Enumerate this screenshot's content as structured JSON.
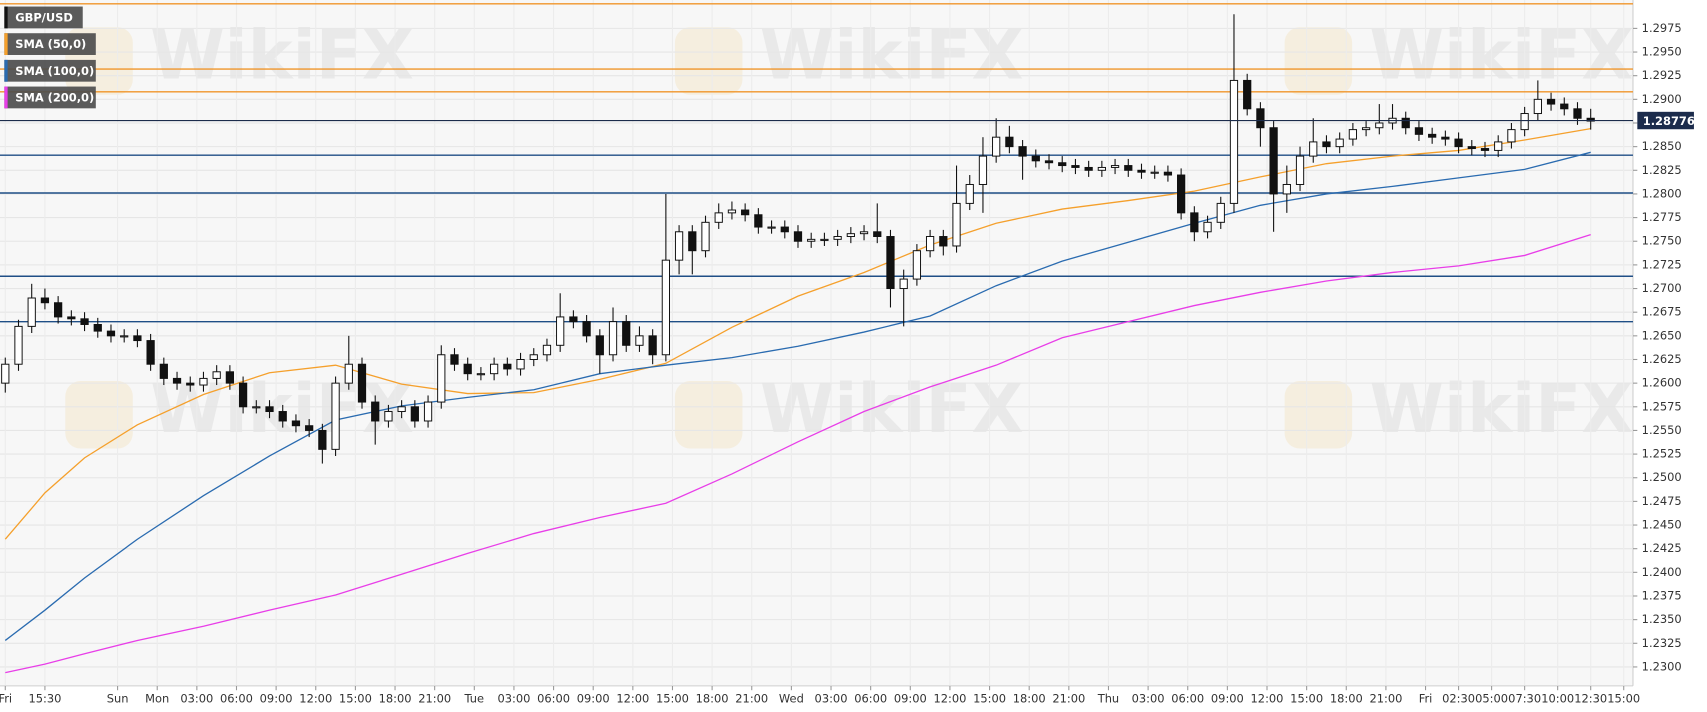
{
  "chart_data": {
    "type": "candlestick",
    "symbol": "GBP/USD",
    "symbol_color": "#111111",
    "watermark": "WikiFX",
    "up_color": "#ffffff",
    "down_color": "#111111",
    "grid": true,
    "xlim": [
      -0.4,
      123.2
    ],
    "ylim": [
      1.228,
      1.3005
    ],
    "xticks": [
      {
        "value": 0,
        "label": "Fri"
      },
      {
        "value": 3,
        "label": "15:30"
      },
      {
        "value": 8.5,
        "label": "Sun"
      },
      {
        "value": 11.5,
        "label": "Mon"
      },
      {
        "value": 14.5,
        "label": "03:00"
      },
      {
        "value": 17.5,
        "label": "06:00"
      },
      {
        "value": 20.5,
        "label": "09:00"
      },
      {
        "value": 23.5,
        "label": "12:00"
      },
      {
        "value": 26.5,
        "label": "15:00"
      },
      {
        "value": 29.5,
        "label": "18:00"
      },
      {
        "value": 32.5,
        "label": "21:00"
      },
      {
        "value": 35.5,
        "label": "Tue"
      },
      {
        "value": 38.5,
        "label": "03:00"
      },
      {
        "value": 41.5,
        "label": "06:00"
      },
      {
        "value": 44.5,
        "label": "09:00"
      },
      {
        "value": 47.5,
        "label": "12:00"
      },
      {
        "value": 50.5,
        "label": "15:00"
      },
      {
        "value": 53.5,
        "label": "18:00"
      },
      {
        "value": 56.5,
        "label": "21:00"
      },
      {
        "value": 59.5,
        "label": "Wed"
      },
      {
        "value": 62.5,
        "label": "03:00"
      },
      {
        "value": 65.5,
        "label": "06:00"
      },
      {
        "value": 68.5,
        "label": "09:00"
      },
      {
        "value": 71.5,
        "label": "12:00"
      },
      {
        "value": 74.5,
        "label": "15:00"
      },
      {
        "value": 77.5,
        "label": "18:00"
      },
      {
        "value": 80.5,
        "label": "21:00"
      },
      {
        "value": 83.5,
        "label": "Thu"
      },
      {
        "value": 86.5,
        "label": "03:00"
      },
      {
        "value": 89.5,
        "label": "06:00"
      },
      {
        "value": 92.5,
        "label": "09:00"
      },
      {
        "value": 95.5,
        "label": "12:00"
      },
      {
        "value": 98.5,
        "label": "15:00"
      },
      {
        "value": 101.5,
        "label": "18:00"
      },
      {
        "value": 104.5,
        "label": "21:00"
      },
      {
        "value": 107.5,
        "label": "Fri"
      },
      {
        "value": 110,
        "label": "02:30"
      },
      {
        "value": 112.5,
        "label": "05:00"
      },
      {
        "value": 115,
        "label": "07:30"
      },
      {
        "value": 117.5,
        "label": "10:00"
      },
      {
        "value": 120,
        "label": "12:30"
      },
      {
        "value": 122.5,
        "label": "15:00"
      }
    ],
    "yticks": [
      {
        "value": 1.23,
        "label": "1.2300"
      },
      {
        "value": 1.2325,
        "label": "1.2325"
      },
      {
        "value": 1.235,
        "label": "1.2350"
      },
      {
        "value": 1.2375,
        "label": "1.2375"
      },
      {
        "value": 1.24,
        "label": "1.2400"
      },
      {
        "value": 1.2425,
        "label": "1.2425"
      },
      {
        "value": 1.245,
        "label": "1.2450"
      },
      {
        "value": 1.2475,
        "label": "1.2475"
      },
      {
        "value": 1.25,
        "label": "1.2500"
      },
      {
        "value": 1.2525,
        "label": "1.2525"
      },
      {
        "value": 1.255,
        "label": "1.2550"
      },
      {
        "value": 1.2575,
        "label": "1.2575"
      },
      {
        "value": 1.26,
        "label": "1.2600"
      },
      {
        "value": 1.2625,
        "label": "1.2625"
      },
      {
        "value": 1.265,
        "label": "1.2650"
      },
      {
        "value": 1.2675,
        "label": "1.2675"
      },
      {
        "value": 1.27,
        "label": "1.2700"
      },
      {
        "value": 1.2725,
        "label": "1.2725"
      },
      {
        "value": 1.275,
        "label": "1.2750"
      },
      {
        "value": 1.2775,
        "label": "1.2775"
      },
      {
        "value": 1.28,
        "label": "1.2800"
      },
      {
        "value": 1.2825,
        "label": "1.2825"
      },
      {
        "value": 1.285,
        "label": "1.2850"
      },
      {
        "value": 1.2875,
        "label": "1.2875"
      },
      {
        "value": 1.29,
        "label": "1.2900"
      },
      {
        "value": 1.2925,
        "label": "1.2925"
      },
      {
        "value": 1.295,
        "label": "1.2950"
      },
      {
        "value": 1.2975,
        "label": "1.2975"
      }
    ],
    "last_price": 1.28776,
    "last_price_color": "#1c2c4c",
    "levels": [
      {
        "value": 1.3001,
        "color": "#f0952a"
      },
      {
        "value": 1.2932,
        "color": "#f0952a"
      },
      {
        "value": 1.2908,
        "color": "#f0952a"
      },
      {
        "value": 1.2841,
        "color": "#1f4e86"
      },
      {
        "value": 1.2801,
        "color": "#1f4e86"
      },
      {
        "value": 1.2713,
        "color": "#1f4e86"
      },
      {
        "value": 1.2665,
        "color": "#1f4e86"
      }
    ],
    "x": [
      0,
      1,
      2,
      3,
      4,
      5,
      6,
      7,
      8,
      9,
      10,
      11,
      12,
      13,
      14,
      15,
      16,
      17,
      18,
      19,
      20,
      21,
      22,
      23,
      24,
      25,
      26,
      27,
      28,
      29,
      30,
      31,
      32,
      33,
      34,
      35,
      36,
      37,
      38,
      39,
      40,
      41,
      42,
      43,
      44,
      45,
      46,
      47,
      48,
      49,
      50,
      51,
      52,
      53,
      54,
      55,
      56,
      57,
      58,
      59,
      60,
      61,
      62,
      63,
      64,
      65,
      66,
      67,
      68,
      69,
      70,
      71,
      72,
      73,
      74,
      75,
      76,
      77,
      78,
      79,
      80,
      81,
      82,
      83,
      84,
      85,
      86,
      87,
      88,
      89,
      90,
      91,
      92,
      93,
      94,
      95,
      96,
      97,
      98,
      99,
      100,
      101,
      102,
      103,
      104,
      105,
      106,
      107,
      108,
      109,
      110,
      111,
      112,
      113,
      114,
      115,
      116,
      117,
      118,
      119,
      120
    ],
    "open": [
      1.26,
      1.262,
      1.266,
      1.269,
      1.2685,
      1.267,
      1.2668,
      1.2662,
      1.2655,
      1.265,
      1.265,
      1.2645,
      1.262,
      1.2605,
      1.26,
      1.2598,
      1.2605,
      1.2612,
      1.26,
      1.2575,
      1.2575,
      1.257,
      1.256,
      1.2555,
      1.255,
      1.253,
      1.26,
      1.262,
      1.258,
      1.256,
      1.257,
      1.2575,
      1.256,
      1.258,
      1.263,
      1.262,
      1.261,
      1.261,
      1.262,
      1.2615,
      1.2625,
      1.263,
      1.264,
      1.267,
      1.2665,
      1.265,
      1.263,
      1.2665,
      1.264,
      1.265,
      1.263,
      1.273,
      1.276,
      1.274,
      1.277,
      1.278,
      1.2783,
      1.2778,
      1.2765,
      1.2765,
      1.276,
      1.275,
      1.2752,
      1.2752,
      1.2755,
      1.2758,
      1.276,
      1.2755,
      1.27,
      1.271,
      1.274,
      1.2755,
      1.2745,
      1.279,
      1.281,
      1.284,
      1.286,
      1.285,
      1.284,
      1.2835,
      1.2833,
      1.283,
      1.2828,
      1.2825,
      1.2828,
      1.283,
      1.2825,
      1.2823,
      1.2823,
      1.282,
      1.278,
      1.276,
      1.277,
      1.279,
      1.292,
      1.289,
      1.287,
      1.28,
      1.281,
      1.284,
      1.2855,
      1.285,
      1.2858,
      1.2868,
      1.287,
      1.2875,
      1.288,
      1.287,
      1.2863,
      1.286,
      1.2858,
      1.285,
      1.2848,
      1.2846,
      1.2855,
      1.2868,
      1.2885,
      1.29,
      1.2895,
      1.289,
      1.288
    ],
    "high": [
      1.2627,
      1.2667,
      1.2705,
      1.27,
      1.2692,
      1.2677,
      1.2675,
      1.2669,
      1.2662,
      1.2657,
      1.2657,
      1.2652,
      1.2627,
      1.2612,
      1.2607,
      1.2612,
      1.2619,
      1.2619,
      1.2607,
      1.2582,
      1.2582,
      1.2577,
      1.2567,
      1.2562,
      1.2557,
      1.2607,
      1.265,
      1.2627,
      1.2587,
      1.2577,
      1.2582,
      1.2582,
      1.2587,
      1.264,
      1.2637,
      1.2627,
      1.2617,
      1.2627,
      1.2627,
      1.2632,
      1.2637,
      1.2647,
      1.2695,
      1.2677,
      1.2672,
      1.2657,
      1.268,
      1.2672,
      1.266,
      1.2657,
      1.28,
      1.2767,
      1.2767,
      1.2777,
      1.279,
      1.2792,
      1.279,
      1.2785,
      1.2772,
      1.2772,
      1.2767,
      1.2759,
      1.2759,
      1.2762,
      1.2765,
      1.2767,
      1.279,
      1.2762,
      1.272,
      1.2747,
      1.2762,
      1.2762,
      1.283,
      1.282,
      1.286,
      1.288,
      1.2872,
      1.2857,
      1.2847,
      1.2842,
      1.284,
      1.2837,
      1.2835,
      1.2835,
      1.2837,
      1.2837,
      1.2832,
      1.283,
      1.283,
      1.2827,
      1.2787,
      1.2777,
      1.2797,
      1.299,
      1.2927,
      1.2897,
      1.2877,
      1.283,
      1.285,
      1.288,
      1.2862,
      1.2865,
      1.2875,
      1.2877,
      1.2895,
      1.2895,
      1.2887,
      1.2877,
      1.287,
      1.2867,
      1.2865,
      1.2857,
      1.2855,
      1.2862,
      1.2875,
      1.2892,
      1.292,
      1.2907,
      1.2902,
      1.2897,
      1.289
    ],
    "low": [
      1.259,
      1.2613,
      1.2653,
      1.2678,
      1.2663,
      1.2661,
      1.2655,
      1.2648,
      1.2643,
      1.2643,
      1.2638,
      1.2613,
      1.2598,
      1.2593,
      1.2591,
      1.2591,
      1.2598,
      1.2593,
      1.2568,
      1.2568,
      1.2563,
      1.2553,
      1.2548,
      1.2543,
      1.2515,
      1.2523,
      1.2593,
      1.2573,
      1.2535,
      1.2553,
      1.2563,
      1.2553,
      1.2553,
      1.2573,
      1.2613,
      1.2603,
      1.2603,
      1.2603,
      1.2608,
      1.2608,
      1.2618,
      1.2623,
      1.2633,
      1.2658,
      1.2643,
      1.261,
      1.2623,
      1.2633,
      1.2633,
      1.262,
      1.2623,
      1.2715,
      1.2715,
      1.2733,
      1.2763,
      1.2773,
      1.2771,
      1.2758,
      1.2758,
      1.2753,
      1.2743,
      1.2743,
      1.2745,
      1.2745,
      1.2748,
      1.2751,
      1.2748,
      1.268,
      1.266,
      1.2703,
      1.2733,
      1.2735,
      1.2738,
      1.2783,
      1.278,
      1.2833,
      1.2843,
      1.2815,
      1.2828,
      1.2826,
      1.2823,
      1.2821,
      1.2818,
      1.2818,
      1.2821,
      1.2818,
      1.2816,
      1.2816,
      1.2813,
      1.2773,
      1.275,
      1.2753,
      1.2763,
      1.278,
      1.2883,
      1.285,
      1.276,
      1.278,
      1.2803,
      1.2833,
      1.2843,
      1.2843,
      1.2851,
      1.2861,
      1.2863,
      1.2868,
      1.2863,
      1.2856,
      1.2853,
      1.2851,
      1.2843,
      1.2841,
      1.2839,
      1.2839,
      1.2848,
      1.2861,
      1.2878,
      1.2888,
      1.2883,
      1.2873,
      1.2868
    ],
    "close": [
      1.262,
      1.266,
      1.269,
      1.2685,
      1.267,
      1.2668,
      1.2662,
      1.2655,
      1.265,
      1.265,
      1.2645,
      1.262,
      1.2605,
      1.26,
      1.2598,
      1.2605,
      1.2612,
      1.26,
      1.2575,
      1.2575,
      1.257,
      1.256,
      1.2555,
      1.255,
      1.253,
      1.26,
      1.262,
      1.258,
      1.256,
      1.257,
      1.2575,
      1.256,
      1.258,
      1.263,
      1.262,
      1.261,
      1.261,
      1.262,
      1.2615,
      1.2625,
      1.263,
      1.264,
      1.267,
      1.2665,
      1.265,
      1.263,
      1.2665,
      1.264,
      1.265,
      1.263,
      1.273,
      1.276,
      1.274,
      1.277,
      1.278,
      1.2783,
      1.2778,
      1.2765,
      1.2765,
      1.276,
      1.275,
      1.2752,
      1.2752,
      1.2755,
      1.2758,
      1.276,
      1.2755,
      1.27,
      1.271,
      1.274,
      1.2755,
      1.2745,
      1.279,
      1.281,
      1.284,
      1.286,
      1.285,
      1.284,
      1.2835,
      1.2833,
      1.283,
      1.2828,
      1.2825,
      1.2828,
      1.283,
      1.2825,
      1.2823,
      1.2823,
      1.282,
      1.278,
      1.276,
      1.277,
      1.279,
      1.292,
      1.289,
      1.287,
      1.28,
      1.281,
      1.284,
      1.2855,
      1.285,
      1.2858,
      1.2868,
      1.287,
      1.2875,
      1.288,
      1.287,
      1.2863,
      1.286,
      1.2858,
      1.285,
      1.2848,
      1.2846,
      1.2855,
      1.2868,
      1.2885,
      1.29,
      1.2895,
      1.289,
      1.288,
      1.2877
    ],
    "series": [
      {
        "name": "SMA (50,0)",
        "color": "#f5a02c",
        "x": [
          0,
          3,
          6,
          10,
          15,
          20,
          25,
          30,
          35,
          40,
          45,
          50,
          55,
          60,
          65,
          70,
          75,
          80,
          85,
          90,
          95,
          100,
          105,
          110,
          115,
          120
        ],
        "values": [
          1.2435,
          1.2484,
          1.2521,
          1.2556,
          1.2588,
          1.2611,
          1.2619,
          1.2599,
          1.2589,
          1.259,
          1.2604,
          1.2621,
          1.2659,
          1.2692,
          1.2717,
          1.2746,
          1.2769,
          1.2784,
          1.2793,
          1.2803,
          1.2818,
          1.2832,
          1.284,
          1.2846,
          1.2857,
          1.2869
        ]
      },
      {
        "name": "SMA (100,0)",
        "color": "#2a6bb0",
        "x": [
          0,
          3,
          6,
          10,
          15,
          20,
          25,
          30,
          35,
          40,
          45,
          50,
          55,
          60,
          65,
          70,
          75,
          80,
          85,
          90,
          95,
          100,
          105,
          110,
          115,
          120
        ],
        "values": [
          1.2328,
          1.236,
          1.2394,
          1.2435,
          1.2481,
          1.2523,
          1.2561,
          1.2576,
          1.2585,
          1.2593,
          1.261,
          1.2619,
          1.2627,
          1.2639,
          1.2654,
          1.2671,
          1.2703,
          1.2729,
          1.2749,
          1.2769,
          1.2788,
          1.28,
          1.2808,
          1.2817,
          1.2826,
          1.2844
        ]
      },
      {
        "name": "SMA (200,0)",
        "color": "#e83ee8",
        "x": [
          0,
          3,
          6,
          10,
          15,
          20,
          25,
          30,
          35,
          40,
          45,
          50,
          55,
          60,
          65,
          70,
          75,
          80,
          85,
          90,
          95,
          100,
          105,
          110,
          115,
          120
        ],
        "values": [
          1.2294,
          1.2303,
          1.2314,
          1.2328,
          1.2343,
          1.236,
          1.2376,
          1.2398,
          1.242,
          1.2441,
          1.2458,
          1.2473,
          1.2504,
          1.2538,
          1.257,
          1.2596,
          1.2619,
          1.2648,
          1.2665,
          1.2682,
          1.2696,
          1.2708,
          1.2717,
          1.2724,
          1.2735,
          1.2757
        ]
      }
    ]
  }
}
